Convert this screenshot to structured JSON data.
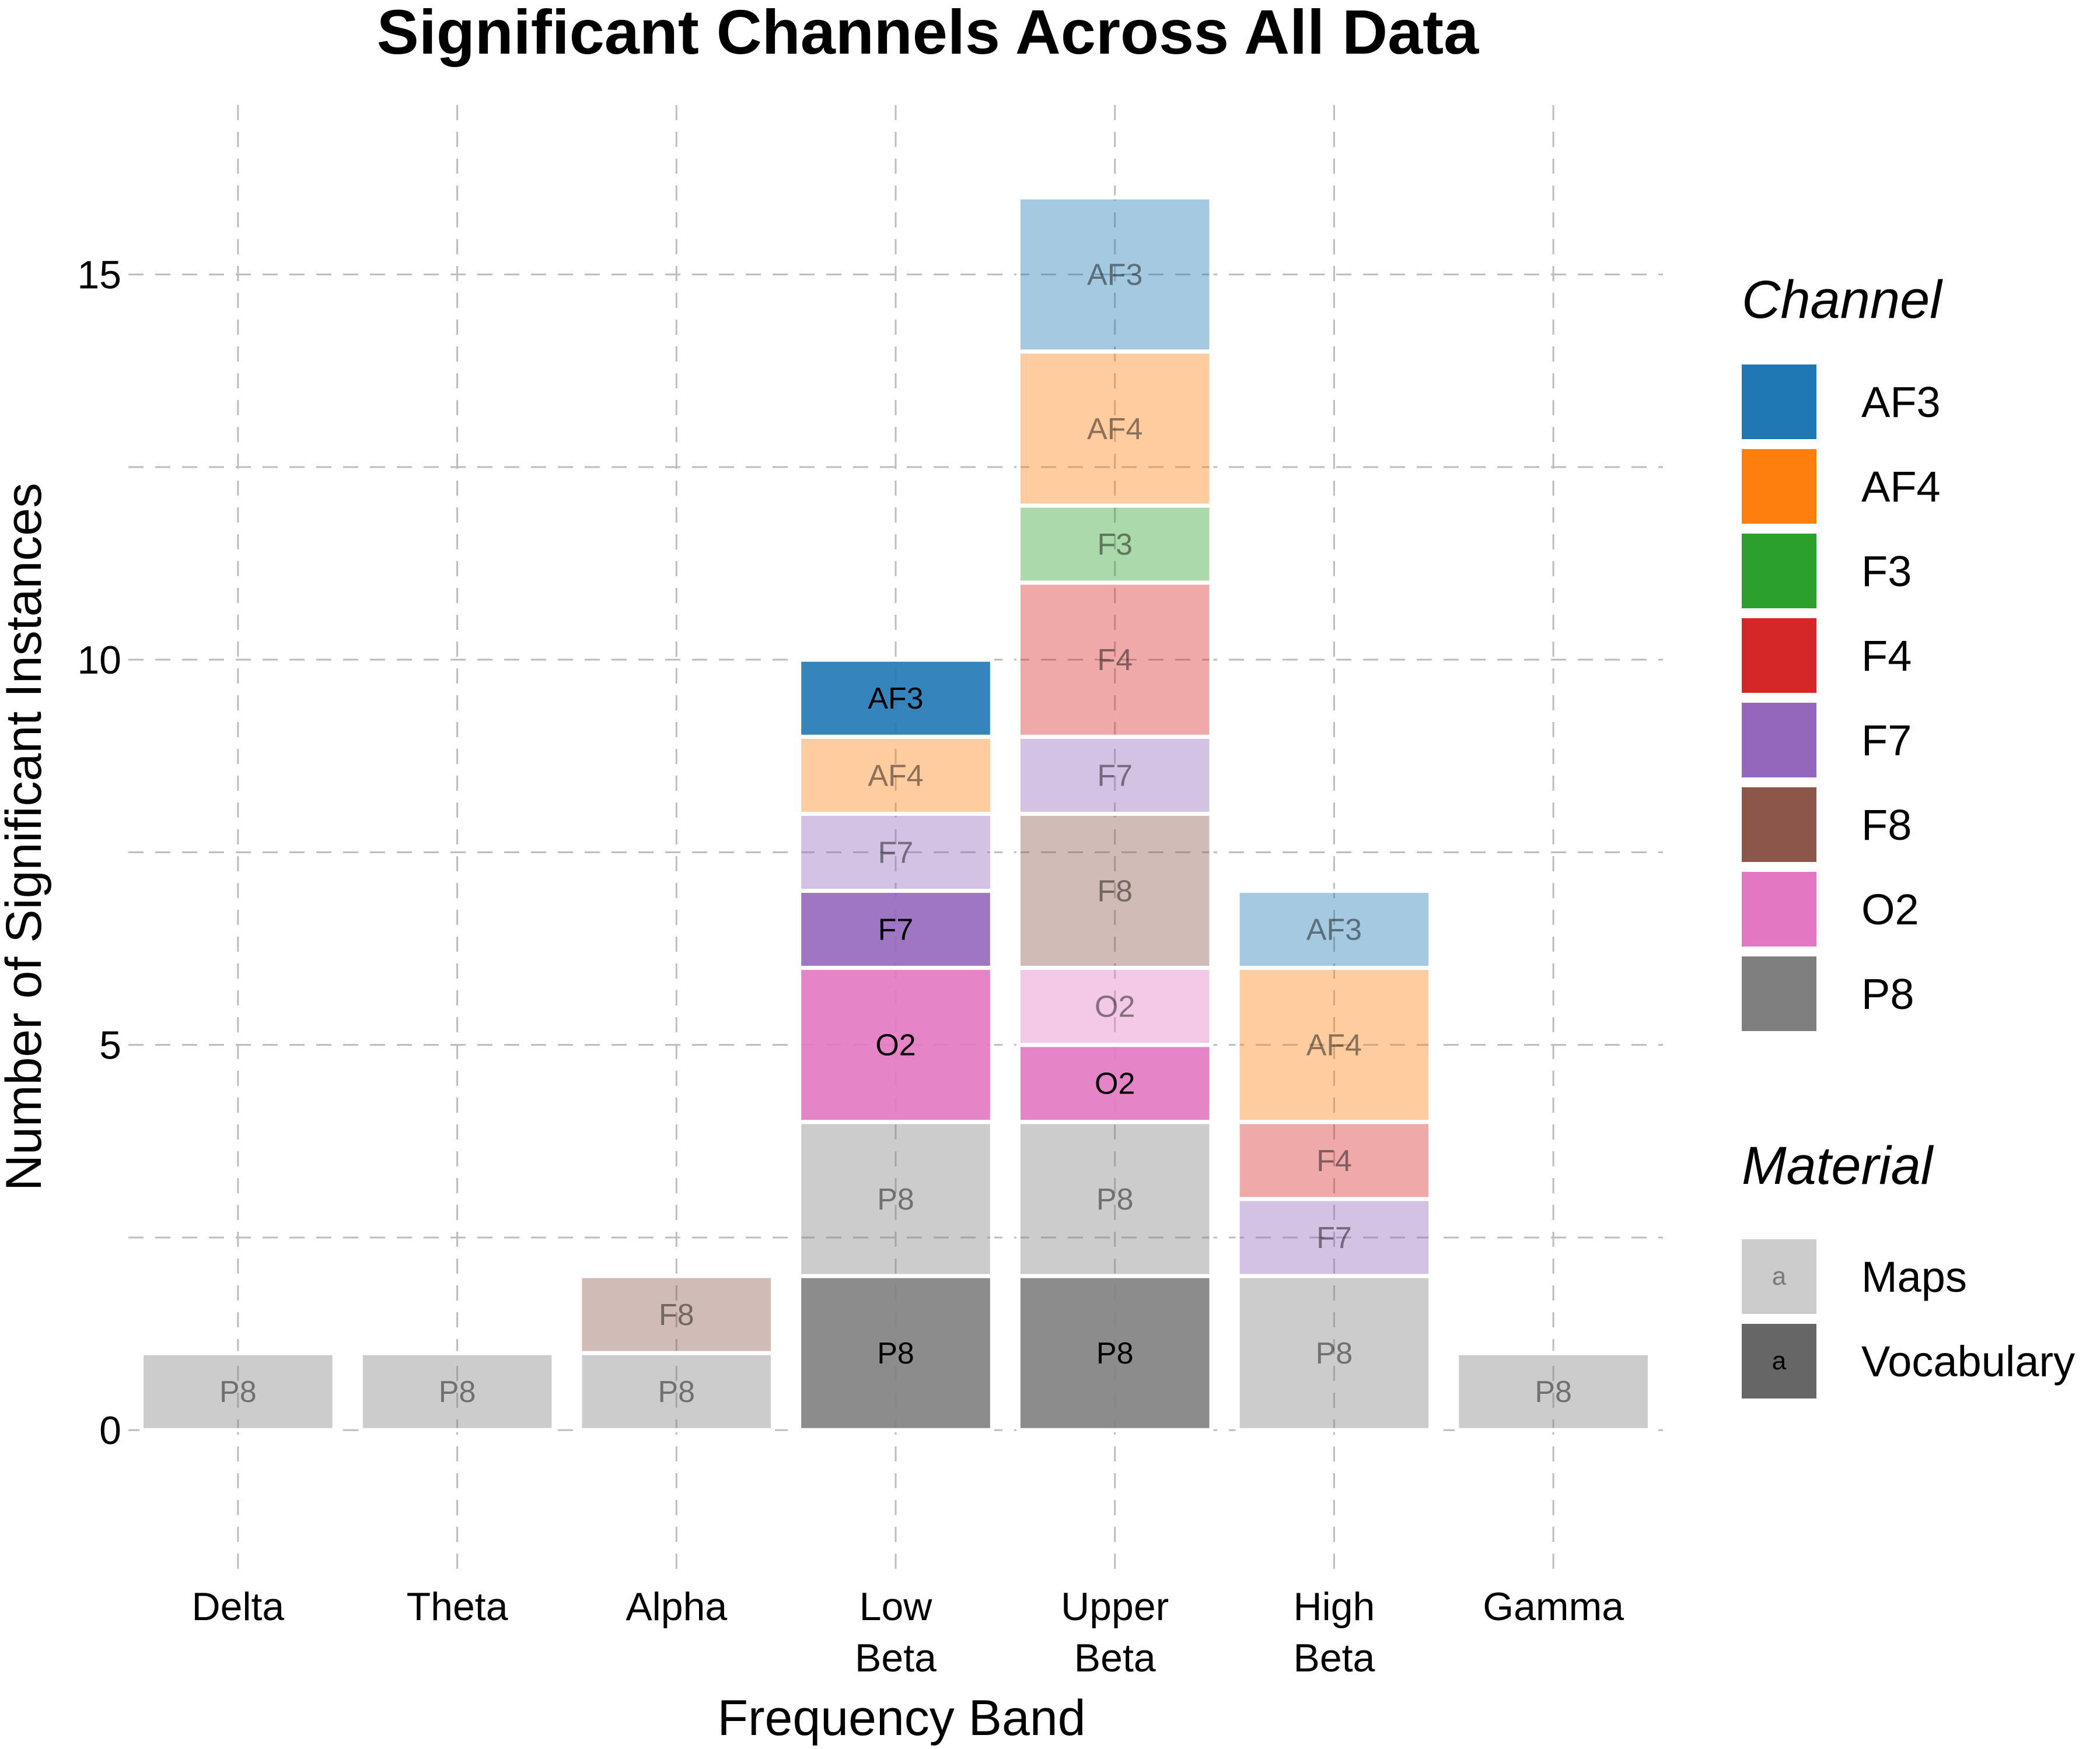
{
  "chart_data": {
    "type": "bar",
    "stacked": true,
    "title": "Significant Channels Across All Data",
    "xlabel": "Frequency Band",
    "ylabel": "Number of Significant Instances",
    "categories": [
      {
        "key": "Delta",
        "lines": [
          "Delta"
        ]
      },
      {
        "key": "Theta",
        "lines": [
          "Theta"
        ]
      },
      {
        "key": "Alpha",
        "lines": [
          "Alpha"
        ]
      },
      {
        "key": "Low Beta",
        "lines": [
          "Low",
          "Beta"
        ]
      },
      {
        "key": "Upper Beta",
        "lines": [
          "Upper",
          "Beta"
        ]
      },
      {
        "key": "High Beta",
        "lines": [
          "High",
          "Beta"
        ]
      },
      {
        "key": "Gamma",
        "lines": [
          "Gamma"
        ]
      }
    ],
    "ylim": [
      -1.8,
      17.2
    ],
    "yticks": [
      0,
      5,
      10,
      15
    ],
    "minor_gridlines": [
      2.5,
      7.5,
      12.5
    ],
    "grid": true,
    "legend_position": "right",
    "legends": {
      "channel": {
        "title": "Channel",
        "entries": [
          {
            "label": "AF3",
            "color": "#1f77b4"
          },
          {
            "label": "AF4",
            "color": "#ff7f0e"
          },
          {
            "label": "F3",
            "color": "#2ca02c"
          },
          {
            "label": "F4",
            "color": "#d62728"
          },
          {
            "label": "F7",
            "color": "#9467bd"
          },
          {
            "label": "F8",
            "color": "#8c564b"
          },
          {
            "label": "O2",
            "color": "#e377c2"
          },
          {
            "label": "P8",
            "color": "#7f7f7f"
          }
        ]
      },
      "material": {
        "title": "Material",
        "entries": [
          {
            "label": "Maps",
            "alpha": 0.4,
            "glyph": "a"
          },
          {
            "label": "Vocabulary",
            "alpha": 0.9,
            "glyph": "a"
          }
        ]
      }
    },
    "stacks": [
      {
        "category": "Delta",
        "segments": [
          {
            "channel": "P8",
            "material": "Maps",
            "value": 1
          }
        ]
      },
      {
        "category": "Theta",
        "segments": [
          {
            "channel": "P8",
            "material": "Maps",
            "value": 1
          }
        ]
      },
      {
        "category": "Alpha",
        "segments": [
          {
            "channel": "P8",
            "material": "Maps",
            "value": 1
          },
          {
            "channel": "F8",
            "material": "Maps",
            "value": 1
          }
        ]
      },
      {
        "category": "Low Beta",
        "segments": [
          {
            "channel": "P8",
            "material": "Vocabulary",
            "value": 2
          },
          {
            "channel": "P8",
            "material": "Maps",
            "value": 2
          },
          {
            "channel": "O2",
            "material": "Vocabulary",
            "value": 2
          },
          {
            "channel": "F7",
            "material": "Vocabulary",
            "value": 1
          },
          {
            "channel": "F7",
            "material": "Maps",
            "value": 1
          },
          {
            "channel": "AF4",
            "material": "Maps",
            "value": 1
          },
          {
            "channel": "AF3",
            "material": "Vocabulary",
            "value": 1
          }
        ]
      },
      {
        "category": "Upper Beta",
        "segments": [
          {
            "channel": "P8",
            "material": "Vocabulary",
            "value": 2
          },
          {
            "channel": "P8",
            "material": "Maps",
            "value": 2
          },
          {
            "channel": "O2",
            "material": "Vocabulary",
            "value": 1
          },
          {
            "channel": "O2",
            "material": "Maps",
            "value": 1
          },
          {
            "channel": "F8",
            "material": "Maps",
            "value": 2
          },
          {
            "channel": "F7",
            "material": "Maps",
            "value": 1
          },
          {
            "channel": "F4",
            "material": "Maps",
            "value": 2
          },
          {
            "channel": "F3",
            "material": "Maps",
            "value": 1
          },
          {
            "channel": "AF4",
            "material": "Maps",
            "value": 2
          },
          {
            "channel": "AF3",
            "material": "Maps",
            "value": 2
          }
        ]
      },
      {
        "category": "High Beta",
        "segments": [
          {
            "channel": "P8",
            "material": "Maps",
            "value": 2
          },
          {
            "channel": "F7",
            "material": "Maps",
            "value": 1
          },
          {
            "channel": "F4",
            "material": "Maps",
            "value": 1
          },
          {
            "channel": "AF4",
            "material": "Maps",
            "value": 2
          },
          {
            "channel": "AF3",
            "material": "Maps",
            "value": 1
          }
        ]
      },
      {
        "category": "Gamma",
        "segments": [
          {
            "channel": "P8",
            "material": "Maps",
            "value": 1
          }
        ]
      }
    ]
  }
}
